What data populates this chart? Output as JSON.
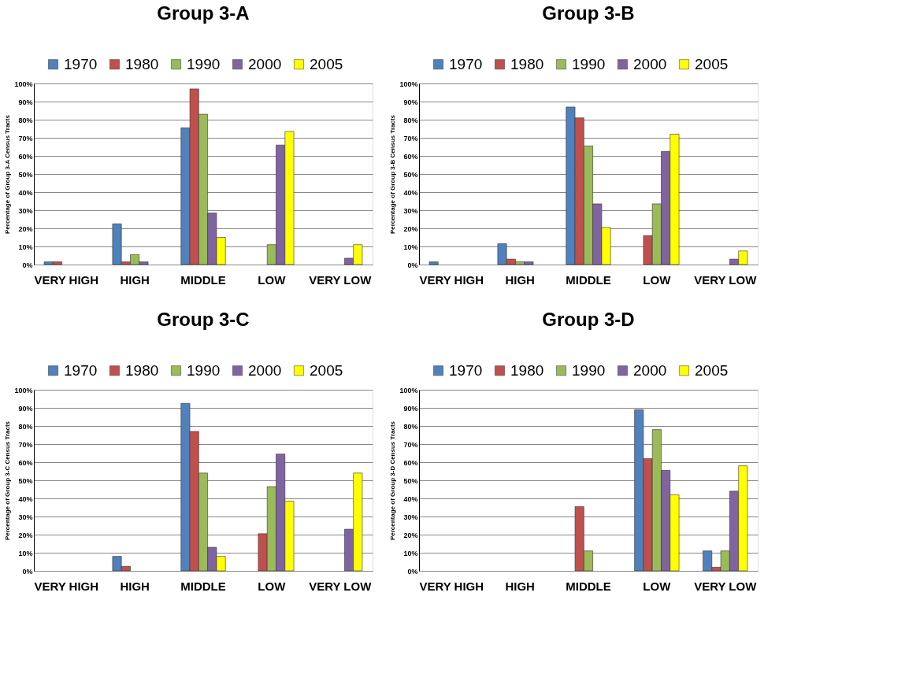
{
  "chart_data": [
    {
      "type": "bar",
      "title": "Group 3-A",
      "ylabel": "Percentage of Group 3-A Census Tracts",
      "categories": [
        "VERY HIGH",
        "HIGH",
        "MIDDLE",
        "LOW",
        "VERY LOW"
      ],
      "ylim": [
        0,
        100
      ],
      "yticks": [
        {
          "value": 0,
          "label": "0%"
        },
        {
          "value": 10,
          "label": "10%"
        },
        {
          "value": 20,
          "label": "20%"
        },
        {
          "value": 30,
          "label": "30%"
        },
        {
          "value": 40,
          "label": "40%"
        },
        {
          "value": 50,
          "label": "50%"
        },
        {
          "value": 60,
          "label": "60%"
        },
        {
          "value": 70,
          "label": "70%"
        },
        {
          "value": 80,
          "label": "80%"
        },
        {
          "value": 90,
          "label": "90%"
        },
        {
          "value": 100,
          "label": "100%"
        }
      ],
      "grid": "y",
      "legend": "top",
      "series": [
        {
          "name": "1970",
          "color": "#4f81bd",
          "values": [
            1.5,
            22.5,
            75.5,
            0,
            0
          ]
        },
        {
          "name": "1980",
          "color": "#c0504d",
          "values": [
            1.5,
            1.5,
            97,
            0,
            0
          ]
        },
        {
          "name": "1990",
          "color": "#9bbb59",
          "values": [
            0,
            5.5,
            83,
            11,
            0
          ]
        },
        {
          "name": "2000",
          "color": "#8064a2",
          "values": [
            0,
            1.5,
            28.5,
            66,
            3.5
          ]
        },
        {
          "name": "2005",
          "color": "#ffff00",
          "values": [
            0,
            0,
            15,
            73.5,
            11
          ]
        }
      ]
    },
    {
      "type": "bar",
      "title": "Group 3-B",
      "ylabel": "Percentage of Group 3-B Census Tracts",
      "categories": [
        "VERY HIGH",
        "HIGH",
        "MIDDLE",
        "LOW",
        "VERY LOW"
      ],
      "ylim": [
        0,
        100
      ],
      "yticks": [
        {
          "value": 0,
          "label": "0%"
        },
        {
          "value": 10,
          "label": "10%"
        },
        {
          "value": 20,
          "label": "20%"
        },
        {
          "value": 30,
          "label": "30%"
        },
        {
          "value": 40,
          "label": "40%"
        },
        {
          "value": 50,
          "label": "50%"
        },
        {
          "value": 60,
          "label": "60%"
        },
        {
          "value": 70,
          "label": "70%"
        },
        {
          "value": 80,
          "label": "80%"
        },
        {
          "value": 90,
          "label": "90%"
        },
        {
          "value": 100,
          "label": "100%"
        }
      ],
      "grid": "y",
      "legend": "top",
      "series": [
        {
          "name": "1970",
          "color": "#4f81bd",
          "values": [
            1.5,
            11.5,
            87,
            0,
            0
          ]
        },
        {
          "name": "1980",
          "color": "#c0504d",
          "values": [
            0,
            3,
            81,
            16,
            0
          ]
        },
        {
          "name": "1990",
          "color": "#9bbb59",
          "values": [
            0,
            1.5,
            65.5,
            33.5,
            0
          ]
        },
        {
          "name": "2000",
          "color": "#8064a2",
          "values": [
            0,
            1.5,
            33.5,
            62.5,
            3
          ]
        },
        {
          "name": "2005",
          "color": "#ffff00",
          "values": [
            0,
            0,
            20.5,
            72,
            7.5
          ]
        }
      ]
    },
    {
      "type": "bar",
      "title": "Group 3-C",
      "ylabel": "Percentage of Group 3-C Census Tracts",
      "categories": [
        "VERY HIGH",
        "HIGH",
        "MIDDLE",
        "LOW",
        "VERY LOW"
      ],
      "ylim": [
        0,
        100
      ],
      "yticks": [
        {
          "value": 0,
          "label": "0%"
        },
        {
          "value": 10,
          "label": "10%"
        },
        {
          "value": 20,
          "label": "20%"
        },
        {
          "value": 30,
          "label": "30%"
        },
        {
          "value": 40,
          "label": "40%"
        },
        {
          "value": 50,
          "label": "50%"
        },
        {
          "value": 60,
          "label": "60%"
        },
        {
          "value": 70,
          "label": "70%"
        },
        {
          "value": 80,
          "label": "80%"
        },
        {
          "value": 90,
          "label": "90%"
        },
        {
          "value": 100,
          "label": "100%"
        }
      ],
      "grid": "y",
      "legend": "top",
      "series": [
        {
          "name": "1970",
          "color": "#4f81bd",
          "values": [
            0,
            8,
            92.5,
            0,
            0
          ]
        },
        {
          "name": "1980",
          "color": "#c0504d",
          "values": [
            0,
            2.5,
            77,
            20.5,
            0
          ]
        },
        {
          "name": "1990",
          "color": "#9bbb59",
          "values": [
            0,
            0,
            54,
            46.5,
            0
          ]
        },
        {
          "name": "2000",
          "color": "#8064a2",
          "values": [
            0,
            0,
            13,
            64.5,
            23
          ]
        },
        {
          "name": "2005",
          "color": "#ffff00",
          "values": [
            0,
            0,
            8,
            38.5,
            54
          ]
        }
      ]
    },
    {
      "type": "bar",
      "title": "Group 3-D",
      "ylabel": "Percentage of Group 3-D Census Tracts",
      "categories": [
        "VERY HIGH",
        "HIGH",
        "MIDDLE",
        "LOW",
        "VERY LOW"
      ],
      "ylim": [
        0,
        100
      ],
      "yticks": [
        {
          "value": 0,
          "label": "0%"
        },
        {
          "value": 10,
          "label": "10%"
        },
        {
          "value": 20,
          "label": "20%"
        },
        {
          "value": 30,
          "label": "30%"
        },
        {
          "value": 40,
          "label": "40%"
        },
        {
          "value": 50,
          "label": "50%"
        },
        {
          "value": 60,
          "label": "60%"
        },
        {
          "value": 70,
          "label": "70%"
        },
        {
          "value": 80,
          "label": "80%"
        },
        {
          "value": 90,
          "label": "90%"
        },
        {
          "value": 100,
          "label": "100%"
        }
      ],
      "grid": "y",
      "legend": "top",
      "series": [
        {
          "name": "1970",
          "color": "#4f81bd",
          "values": [
            0,
            0,
            0,
            89,
            11
          ]
        },
        {
          "name": "1980",
          "color": "#c0504d",
          "values": [
            0,
            0,
            35.5,
            62,
            2
          ]
        },
        {
          "name": "1990",
          "color": "#9bbb59",
          "values": [
            0,
            0,
            11,
            78,
            11
          ]
        },
        {
          "name": "2000",
          "color": "#8064a2",
          "values": [
            0,
            0,
            0,
            55.5,
            44
          ]
        },
        {
          "name": "2005",
          "color": "#ffff00",
          "values": [
            0,
            0,
            0,
            42,
            58
          ]
        }
      ]
    }
  ]
}
